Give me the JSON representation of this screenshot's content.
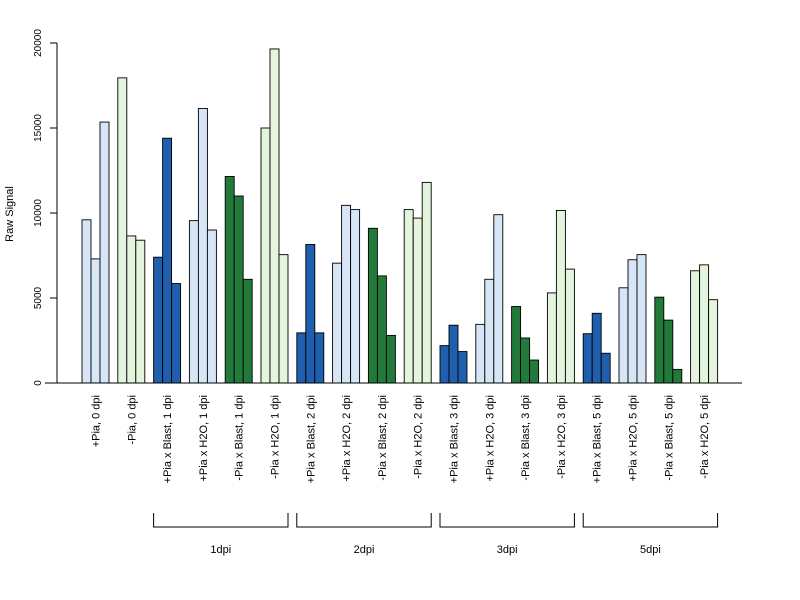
{
  "chart_data": {
    "type": "bar",
    "ylabel": "Raw Signal",
    "ylim": [
      0,
      20000
    ],
    "yticks": [
      0,
      5000,
      10000,
      15000,
      20000
    ],
    "colors": {
      "pia_plus_light": "#d6e6f7",
      "pia_minus_light": "#e3f5dc",
      "blast_plus": "#1f5fae",
      "blast_minus": "#217a3a"
    },
    "categories": [
      {
        "label": "+Pia, 0 dpi",
        "color": "pia_plus_light",
        "values": [
          9600,
          7300,
          15350
        ]
      },
      {
        "label": "-Pia, 0 dpi",
        "color": "pia_minus_light",
        "values": [
          17950,
          8650,
          8400
        ]
      },
      {
        "label": "+Pia x Blast, 1 dpi",
        "color": "blast_plus",
        "values": [
          7400,
          14400,
          5850
        ]
      },
      {
        "label": "+Pia x H2O, 1 dpi",
        "color": "pia_plus_light",
        "values": [
          9550,
          16150,
          9000
        ]
      },
      {
        "label": "-Pia x Blast, 1 dpi",
        "color": "blast_minus",
        "values": [
          12150,
          11000,
          6100
        ]
      },
      {
        "label": "-Pia x H2O, 1 dpi",
        "color": "pia_minus_light",
        "values": [
          15000,
          19650,
          7550
        ]
      },
      {
        "label": "+Pia x Blast, 2 dpi",
        "color": "blast_plus",
        "values": [
          2950,
          8150,
          2950
        ]
      },
      {
        "label": "+Pia x H2O, 2 dpi",
        "color": "pia_plus_light",
        "values": [
          7050,
          10450,
          10200
        ]
      },
      {
        "label": "-Pia x Blast, 2 dpi",
        "color": "blast_minus",
        "values": [
          9100,
          6300,
          2800
        ]
      },
      {
        "label": "-Pia x H2O, 2 dpi",
        "color": "pia_minus_light",
        "values": [
          10200,
          9700,
          11800
        ]
      },
      {
        "label": "+Pia x Blast, 3 dpi",
        "color": "blast_plus",
        "values": [
          2200,
          3400,
          1850
        ]
      },
      {
        "label": "+Pia x H2O, 3 dpi",
        "color": "pia_plus_light",
        "values": [
          3450,
          6100,
          9900
        ]
      },
      {
        "label": "-Pia x Blast, 3 dpi",
        "color": "blast_minus",
        "values": [
          4500,
          2650,
          1350
        ]
      },
      {
        "label": "-Pia x H2O, 3 dpi",
        "color": "pia_minus_light",
        "values": [
          5300,
          10150,
          6700
        ]
      },
      {
        "label": "+Pia x Blast, 5 dpi",
        "color": "blast_plus",
        "values": [
          2900,
          4100,
          1750
        ]
      },
      {
        "label": "+Pia x H2O, 5 dpi",
        "color": "pia_plus_light",
        "values": [
          5600,
          7250,
          7550
        ]
      },
      {
        "label": "-Pia x Blast, 5 dpi",
        "color": "blast_minus",
        "values": [
          5050,
          3700,
          800
        ]
      },
      {
        "label": "-Pia x H2O, 5 dpi",
        "color": "pia_minus_light",
        "values": [
          6600,
          6950,
          4900
        ]
      }
    ],
    "groups": [
      {
        "label": "1dpi",
        "from": 2,
        "to": 5
      },
      {
        "label": "2dpi",
        "from": 6,
        "to": 9
      },
      {
        "label": "3dpi",
        "from": 10,
        "to": 13
      },
      {
        "label": "5dpi",
        "from": 14,
        "to": 17
      }
    ]
  }
}
